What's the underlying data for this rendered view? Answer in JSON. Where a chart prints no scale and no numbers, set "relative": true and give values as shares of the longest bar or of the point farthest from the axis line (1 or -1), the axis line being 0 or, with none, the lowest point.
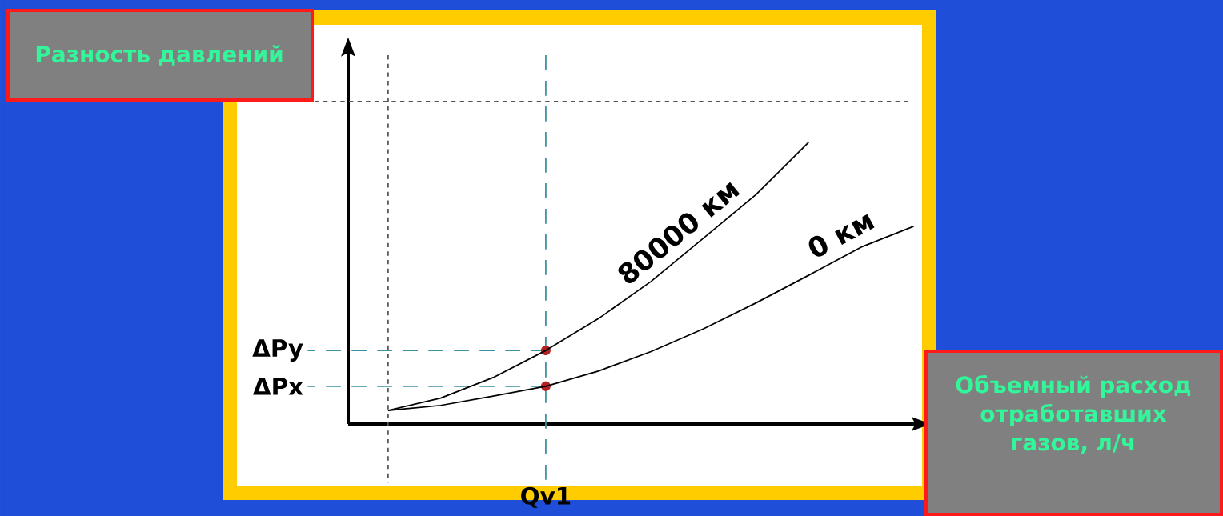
{
  "chart_data": {
    "type": "line",
    "relative": true,
    "ylabel": "Разность давлений",
    "xlabel": "Объемный расход отработавших газов, л/ч",
    "categories": [
      null,
      null,
      null,
      null,
      null,
      null,
      null,
      null,
      null,
      null,
      null
    ],
    "annotations": [
      "Qv1"
    ],
    "series": [
      {
        "name": "80000 км",
        "color": "#000000",
        "line_style": "solid",
        "values": [
          0.048,
          0.092,
          0.165,
          0.261,
          0.374,
          0.506,
          0.66,
          0.815,
          1.0,
          null,
          null
        ]
      },
      {
        "name": "0 км",
        "color": "#000000",
        "line_style": "solid",
        "values": [
          0.048,
          0.066,
          0.099,
          0.134,
          0.188,
          0.257,
          0.338,
          0.43,
          0.528,
          0.628,
          0.702
        ]
      }
    ],
    "ref_lines": [
      {
        "axis": "y",
        "value": 0.261,
        "label": "ΔPy",
        "color": "#3a8fa0",
        "line_style": "dashed"
      },
      {
        "axis": "y",
        "value": 0.134,
        "label": "ΔPx",
        "color": "#3a8fa0",
        "line_style": "dashed"
      },
      {
        "axis": "y",
        "value": 1.145,
        "color": "#555555",
        "line_style": "dotted"
      }
    ]
  }
}
